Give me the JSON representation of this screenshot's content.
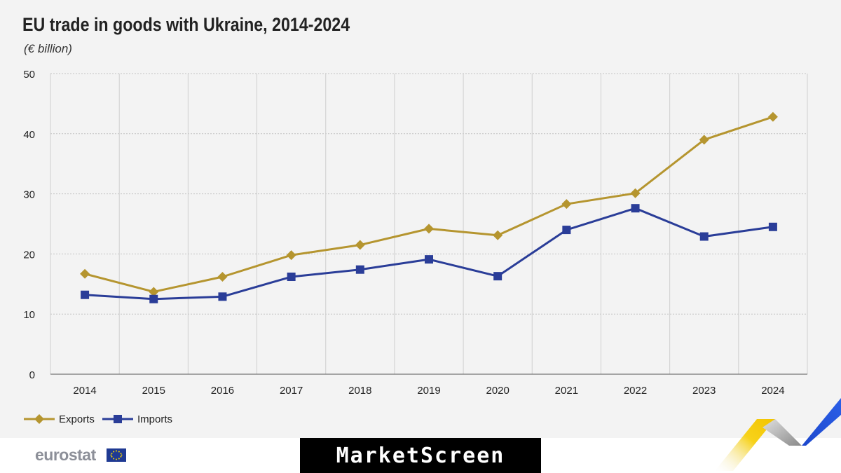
{
  "header": {
    "title": "EU trade in goods with Ukraine, 2014-2024",
    "subtitle": "(€ billion)"
  },
  "chart_data": {
    "type": "line",
    "title": "EU trade in goods with Ukraine, 2014-2024",
    "subtitle": "(€ billion)",
    "xlabel": "",
    "ylabel": "",
    "x": [
      "2014",
      "2015",
      "2016",
      "2017",
      "2018",
      "2019",
      "2020",
      "2021",
      "2022",
      "2023",
      "2024"
    ],
    "ylim": [
      0,
      50
    ],
    "yticks": [
      0,
      10,
      20,
      30,
      40,
      50
    ],
    "grid": true,
    "legend_position": "bottom-left",
    "series": [
      {
        "name": "Exports",
        "color": "#b5952f",
        "marker": "diamond",
        "values": [
          16.7,
          13.7,
          16.2,
          19.8,
          21.5,
          24.2,
          23.1,
          28.3,
          30.1,
          39.0,
          42.8
        ]
      },
      {
        "name": "Imports",
        "color": "#2a3d98",
        "marker": "square",
        "values": [
          13.2,
          12.5,
          12.9,
          16.2,
          17.4,
          19.1,
          16.3,
          24.0,
          27.6,
          22.9,
          24.5
        ]
      }
    ]
  },
  "footer": {
    "source_logo": "eurostat",
    "brand": "MarketScreen"
  },
  "colors": {
    "exports": "#b5952f",
    "imports": "#2a3d98",
    "grid": "#c8c8c8",
    "background": "#f3f3f3"
  }
}
